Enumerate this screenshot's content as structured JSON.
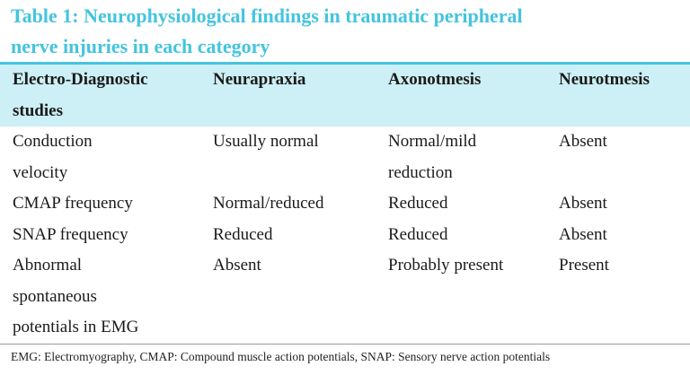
{
  "table": {
    "title": [
      "Table 1: Neurophysiological findings in traumatic peripheral",
      "nerve injuries in each category"
    ],
    "header": [
      [
        "Electro-Diagnostic",
        "studies"
      ],
      [
        "Neurapraxia"
      ],
      [
        "Axonotmesis"
      ],
      [
        "Neurotmesis"
      ]
    ],
    "rows": [
      [
        [
          "Conduction",
          "velocity"
        ],
        [
          "Usually normal"
        ],
        [
          "Normal/mild",
          "reduction"
        ],
        [
          "Absent"
        ]
      ],
      [
        [
          "CMAP frequency"
        ],
        [
          "Normal/reduced"
        ],
        [
          "Reduced"
        ],
        [
          "Absent"
        ]
      ],
      [
        [
          "SNAP frequency"
        ],
        [
          "Reduced"
        ],
        [
          "Reduced"
        ],
        [
          "Absent"
        ]
      ],
      [
        [
          "Abnormal",
          "spontaneous",
          "potentials in EMG"
        ],
        [
          "Absent"
        ],
        [
          "Probably present"
        ],
        [
          "Present"
        ]
      ]
    ],
    "footnote": "EMG: Electromyography, CMAP: Compound muscle action potentials, SNAP: Sensory nerve action potentials"
  }
}
